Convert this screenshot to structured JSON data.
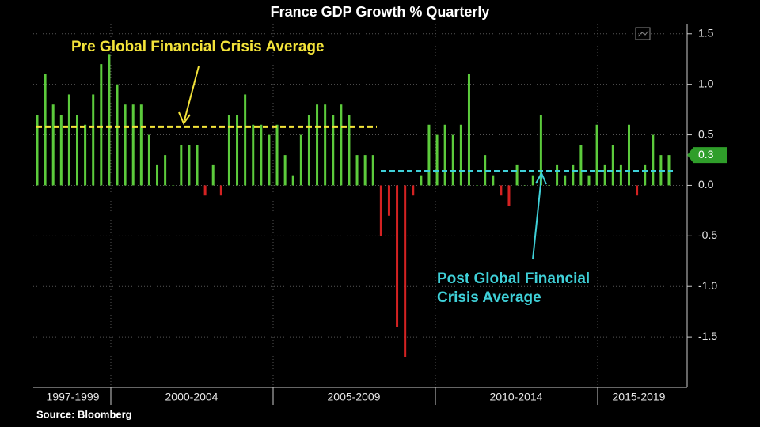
{
  "chart_data": {
    "type": "bar",
    "title": "France GDP Growth % Quarterly",
    "source": "Source: Bloomberg",
    "period_labels": [
      "1997-1999",
      "2000-2004",
      "2005-2009",
      "2010-2014",
      "2015-2019"
    ],
    "categories": [
      null,
      null,
      null,
      null,
      null,
      null,
      null,
      null,
      null,
      null,
      null,
      null,
      null,
      null,
      null,
      null,
      null,
      null,
      null,
      null,
      null,
      null,
      null,
      null,
      null,
      null,
      null,
      null,
      null,
      null,
      null,
      null,
      null,
      null,
      null,
      null,
      null,
      null,
      null,
      null,
      null,
      null,
      null,
      null,
      null,
      null,
      null,
      null,
      null,
      null,
      null,
      null,
      null,
      null,
      null,
      null,
      null,
      null,
      null,
      null,
      null,
      null,
      null,
      null,
      null,
      null,
      null,
      null,
      null,
      null,
      null,
      null,
      null,
      null,
      null,
      null,
      null,
      null,
      null,
      null
    ],
    "values": [
      0.7,
      1.1,
      0.8,
      0.7,
      0.9,
      0.7,
      0.6,
      0.9,
      1.2,
      1.3,
      1.0,
      0.8,
      0.8,
      0.8,
      0.5,
      0.2,
      0.3,
      0.0,
      0.4,
      0.4,
      0.4,
      -0.1,
      0.2,
      -0.1,
      0.7,
      0.7,
      0.9,
      0.6,
      0.6,
      0.5,
      0.6,
      0.3,
      0.1,
      0.5,
      0.7,
      0.8,
      0.8,
      0.7,
      0.8,
      0.7,
      0.3,
      0.3,
      0.3,
      -0.5,
      -0.3,
      -1.4,
      -1.7,
      -0.1,
      0.1,
      0.6,
      0.5,
      0.6,
      0.5,
      0.6,
      1.1,
      0.0,
      0.3,
      0.1,
      -0.1,
      -0.2,
      0.2,
      0.0,
      0.1,
      0.7,
      0.0,
      0.2,
      0.1,
      0.2,
      0.4,
      0.1,
      0.6,
      0.2,
      0.4,
      0.2,
      0.6,
      -0.1,
      0.2,
      0.5,
      0.3,
      0.3
    ],
    "positive_color": "#5ccb3c",
    "negative_color": "#d42222",
    "last_value": 0.3,
    "averages": [
      {
        "name": "Pre Global Financial Crisis Average",
        "value": 0.58,
        "color": "#f3e33a"
      },
      {
        "name_lines": [
          "Post Global Financial",
          "Crisis Average"
        ],
        "value": 0.14,
        "color": "#3fd0d8"
      }
    ],
    "ylim": [
      -2.0,
      1.6
    ],
    "yticks": [
      1.5,
      {
        "value": 1.0,
        "label": "1.0"
      },
      0.5,
      {
        "value": 0.0,
        "label": "0.0"
      },
      -0.5,
      {
        "value": -1.0,
        "label": "-1.0"
      },
      -1.5
    ],
    "grid": true
  }
}
